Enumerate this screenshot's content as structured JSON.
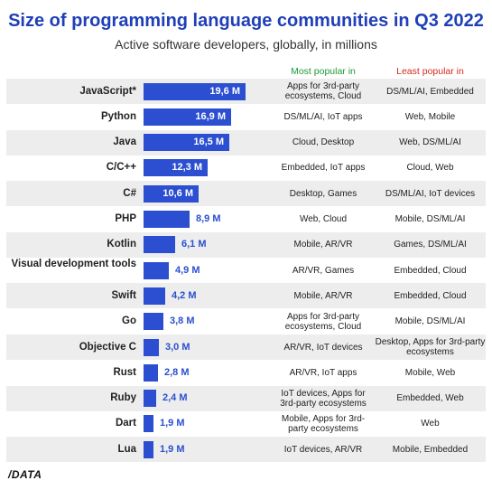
{
  "chart_data": {
    "type": "bar",
    "title": "Size of programming language communities in Q3 2022",
    "subtitle": "Active software developers, globally, in millions",
    "columns": {
      "most": "Most popular in",
      "least": "Least popular in"
    },
    "categories": [
      "JavaScript*",
      "Python",
      "Java",
      "C/C++",
      "C#",
      "PHP",
      "Kotlin",
      "Visual development tools",
      "Swift",
      "Go",
      "Objective C",
      "Rust",
      "Ruby",
      "Dart",
      "Lua"
    ],
    "values": [
      19.6,
      16.9,
      16.5,
      12.3,
      10.6,
      8.9,
      6.1,
      4.9,
      4.2,
      3.8,
      3.0,
      2.8,
      2.4,
      1.9,
      1.9
    ],
    "value_labels": [
      "19,6 M",
      "16,9 M",
      "16,5 M",
      "12,3 M",
      "10,6 M",
      "8,9 M",
      "6,1 M",
      "4,9 M",
      "4,2 M",
      "3,8 M",
      "3,0 M",
      "2,8 M",
      "2,4 M",
      "1,9 M",
      "1,9 M"
    ],
    "most_popular": [
      "Apps for 3rd-party ecosystems, Cloud",
      "DS/ML/AI, IoT apps",
      "Cloud, Desktop",
      "Embedded, IoT apps",
      "Desktop, Games",
      "Web, Cloud",
      "Mobile, AR/VR",
      "AR/VR, Games",
      "Mobile, AR/VR",
      "Apps for 3rd-party ecosystems, Cloud",
      "AR/VR, IoT devices",
      "AR/VR, IoT apps",
      "IoT devices, Apps for 3rd-party ecosystems",
      "Mobile, Apps for 3rd-party ecosystems",
      "IoT devices, AR/VR"
    ],
    "least_popular": [
      "DS/ML/AI, Embedded",
      "Web, Mobile",
      "Web, DS/ML/AI",
      "Cloud, Web",
      "DS/ML/AI, IoT devices",
      "Mobile, DS/ML/AI",
      "Games, DS/ML/AI",
      "Embedded, Cloud",
      "Embedded, Cloud",
      "Mobile, DS/ML/AI",
      "Desktop, Apps for 3rd-party ecosystems",
      "Mobile, Web",
      "Embedded, Web",
      "Web",
      "Mobile, Embedded"
    ],
    "colors": {
      "bar": "#2b4fd0",
      "title": "#1f3fb8",
      "most": "#1f9a3a",
      "least": "#d42a1f",
      "row_shade": "#ededed"
    }
  },
  "footer": {
    "logo": "/DATA"
  }
}
